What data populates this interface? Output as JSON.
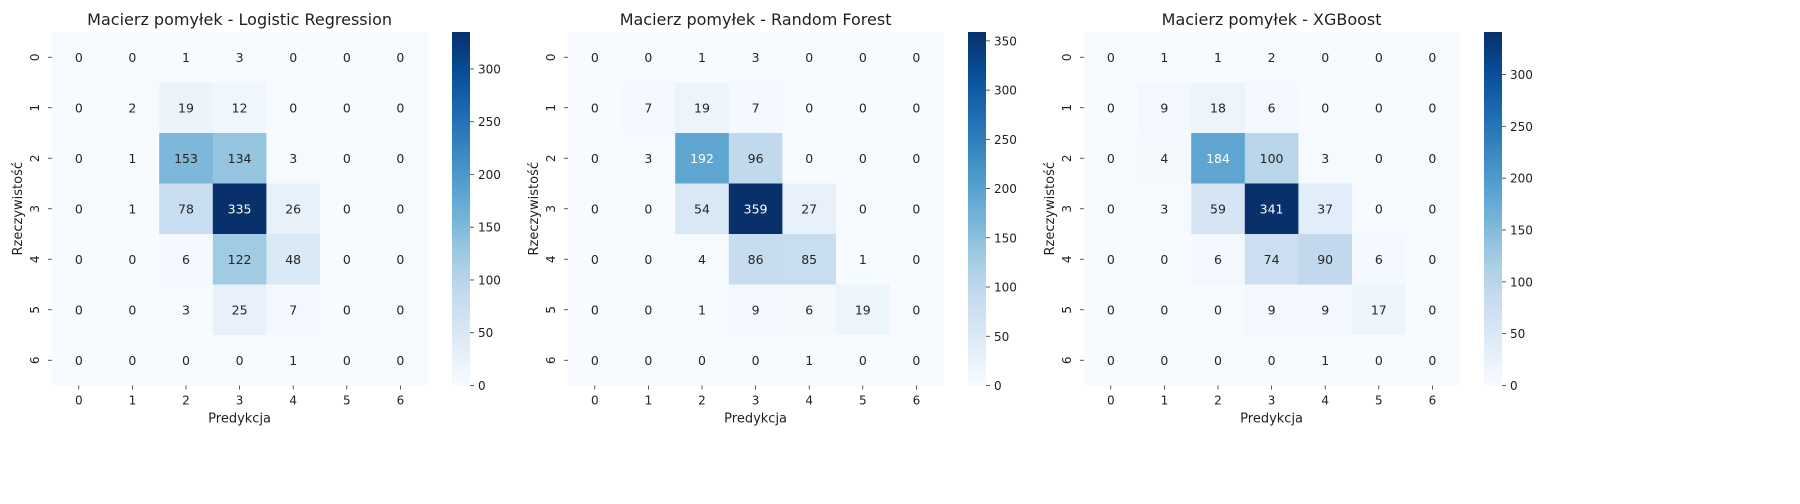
{
  "chart_data": [
    {
      "type": "heatmap",
      "title": "Macierz pomyłek - Logistic Regression",
      "xlabel": "Predykcja",
      "ylabel": "Rzeczywistość",
      "x_ticks": [
        "0",
        "1",
        "2",
        "3",
        "4",
        "5",
        "6"
      ],
      "y_ticks": [
        "0",
        "1",
        "2",
        "3",
        "4",
        "5",
        "6"
      ],
      "matrix": [
        [
          0,
          0,
          1,
          3,
          0,
          0,
          0
        ],
        [
          0,
          2,
          19,
          12,
          0,
          0,
          0
        ],
        [
          0,
          1,
          153,
          134,
          3,
          0,
          0
        ],
        [
          0,
          1,
          78,
          335,
          26,
          0,
          0
        ],
        [
          0,
          0,
          6,
          122,
          48,
          0,
          0
        ],
        [
          0,
          0,
          3,
          25,
          7,
          0,
          0
        ],
        [
          0,
          0,
          0,
          0,
          1,
          0,
          0
        ]
      ],
      "colorbar": {
        "min": 0,
        "max": 335,
        "ticks": [
          0,
          50,
          100,
          150,
          200,
          250,
          300
        ],
        "colormap": "Blues"
      }
    },
    {
      "type": "heatmap",
      "title": "Macierz pomyłek - Random Forest",
      "xlabel": "Predykcja",
      "ylabel": "Rzeczywistość",
      "x_ticks": [
        "0",
        "1",
        "2",
        "3",
        "4",
        "5",
        "6"
      ],
      "y_ticks": [
        "0",
        "1",
        "2",
        "3",
        "4",
        "5",
        "6"
      ],
      "matrix": [
        [
          0,
          0,
          1,
          3,
          0,
          0,
          0
        ],
        [
          0,
          7,
          19,
          7,
          0,
          0,
          0
        ],
        [
          0,
          3,
          192,
          96,
          0,
          0,
          0
        ],
        [
          0,
          0,
          54,
          359,
          27,
          0,
          0
        ],
        [
          0,
          0,
          4,
          86,
          85,
          1,
          0
        ],
        [
          0,
          0,
          1,
          9,
          6,
          19,
          0
        ],
        [
          0,
          0,
          0,
          0,
          1,
          0,
          0
        ]
      ],
      "colorbar": {
        "min": 0,
        "max": 359,
        "ticks": [
          0,
          50,
          100,
          150,
          200,
          250,
          300,
          350
        ],
        "colormap": "Blues"
      }
    },
    {
      "type": "heatmap",
      "title": "Macierz pomyłek - XGBoost",
      "xlabel": "Predykcja",
      "ylabel": "Rzeczywistość",
      "x_ticks": [
        "0",
        "1",
        "2",
        "3",
        "4",
        "5",
        "6"
      ],
      "y_ticks": [
        "0",
        "1",
        "2",
        "3",
        "4",
        "5",
        "6"
      ],
      "matrix": [
        [
          0,
          1,
          1,
          2,
          0,
          0,
          0
        ],
        [
          0,
          9,
          18,
          6,
          0,
          0,
          0
        ],
        [
          0,
          4,
          184,
          100,
          3,
          0,
          0
        ],
        [
          0,
          3,
          59,
          341,
          37,
          0,
          0
        ],
        [
          0,
          0,
          6,
          74,
          90,
          6,
          0
        ],
        [
          0,
          0,
          0,
          9,
          9,
          17,
          0
        ],
        [
          0,
          0,
          0,
          0,
          1,
          0,
          0
        ]
      ],
      "colorbar": {
        "min": 0,
        "max": 341,
        "ticks": [
          0,
          50,
          100,
          150,
          200,
          250,
          300
        ],
        "colormap": "Blues"
      }
    }
  ]
}
